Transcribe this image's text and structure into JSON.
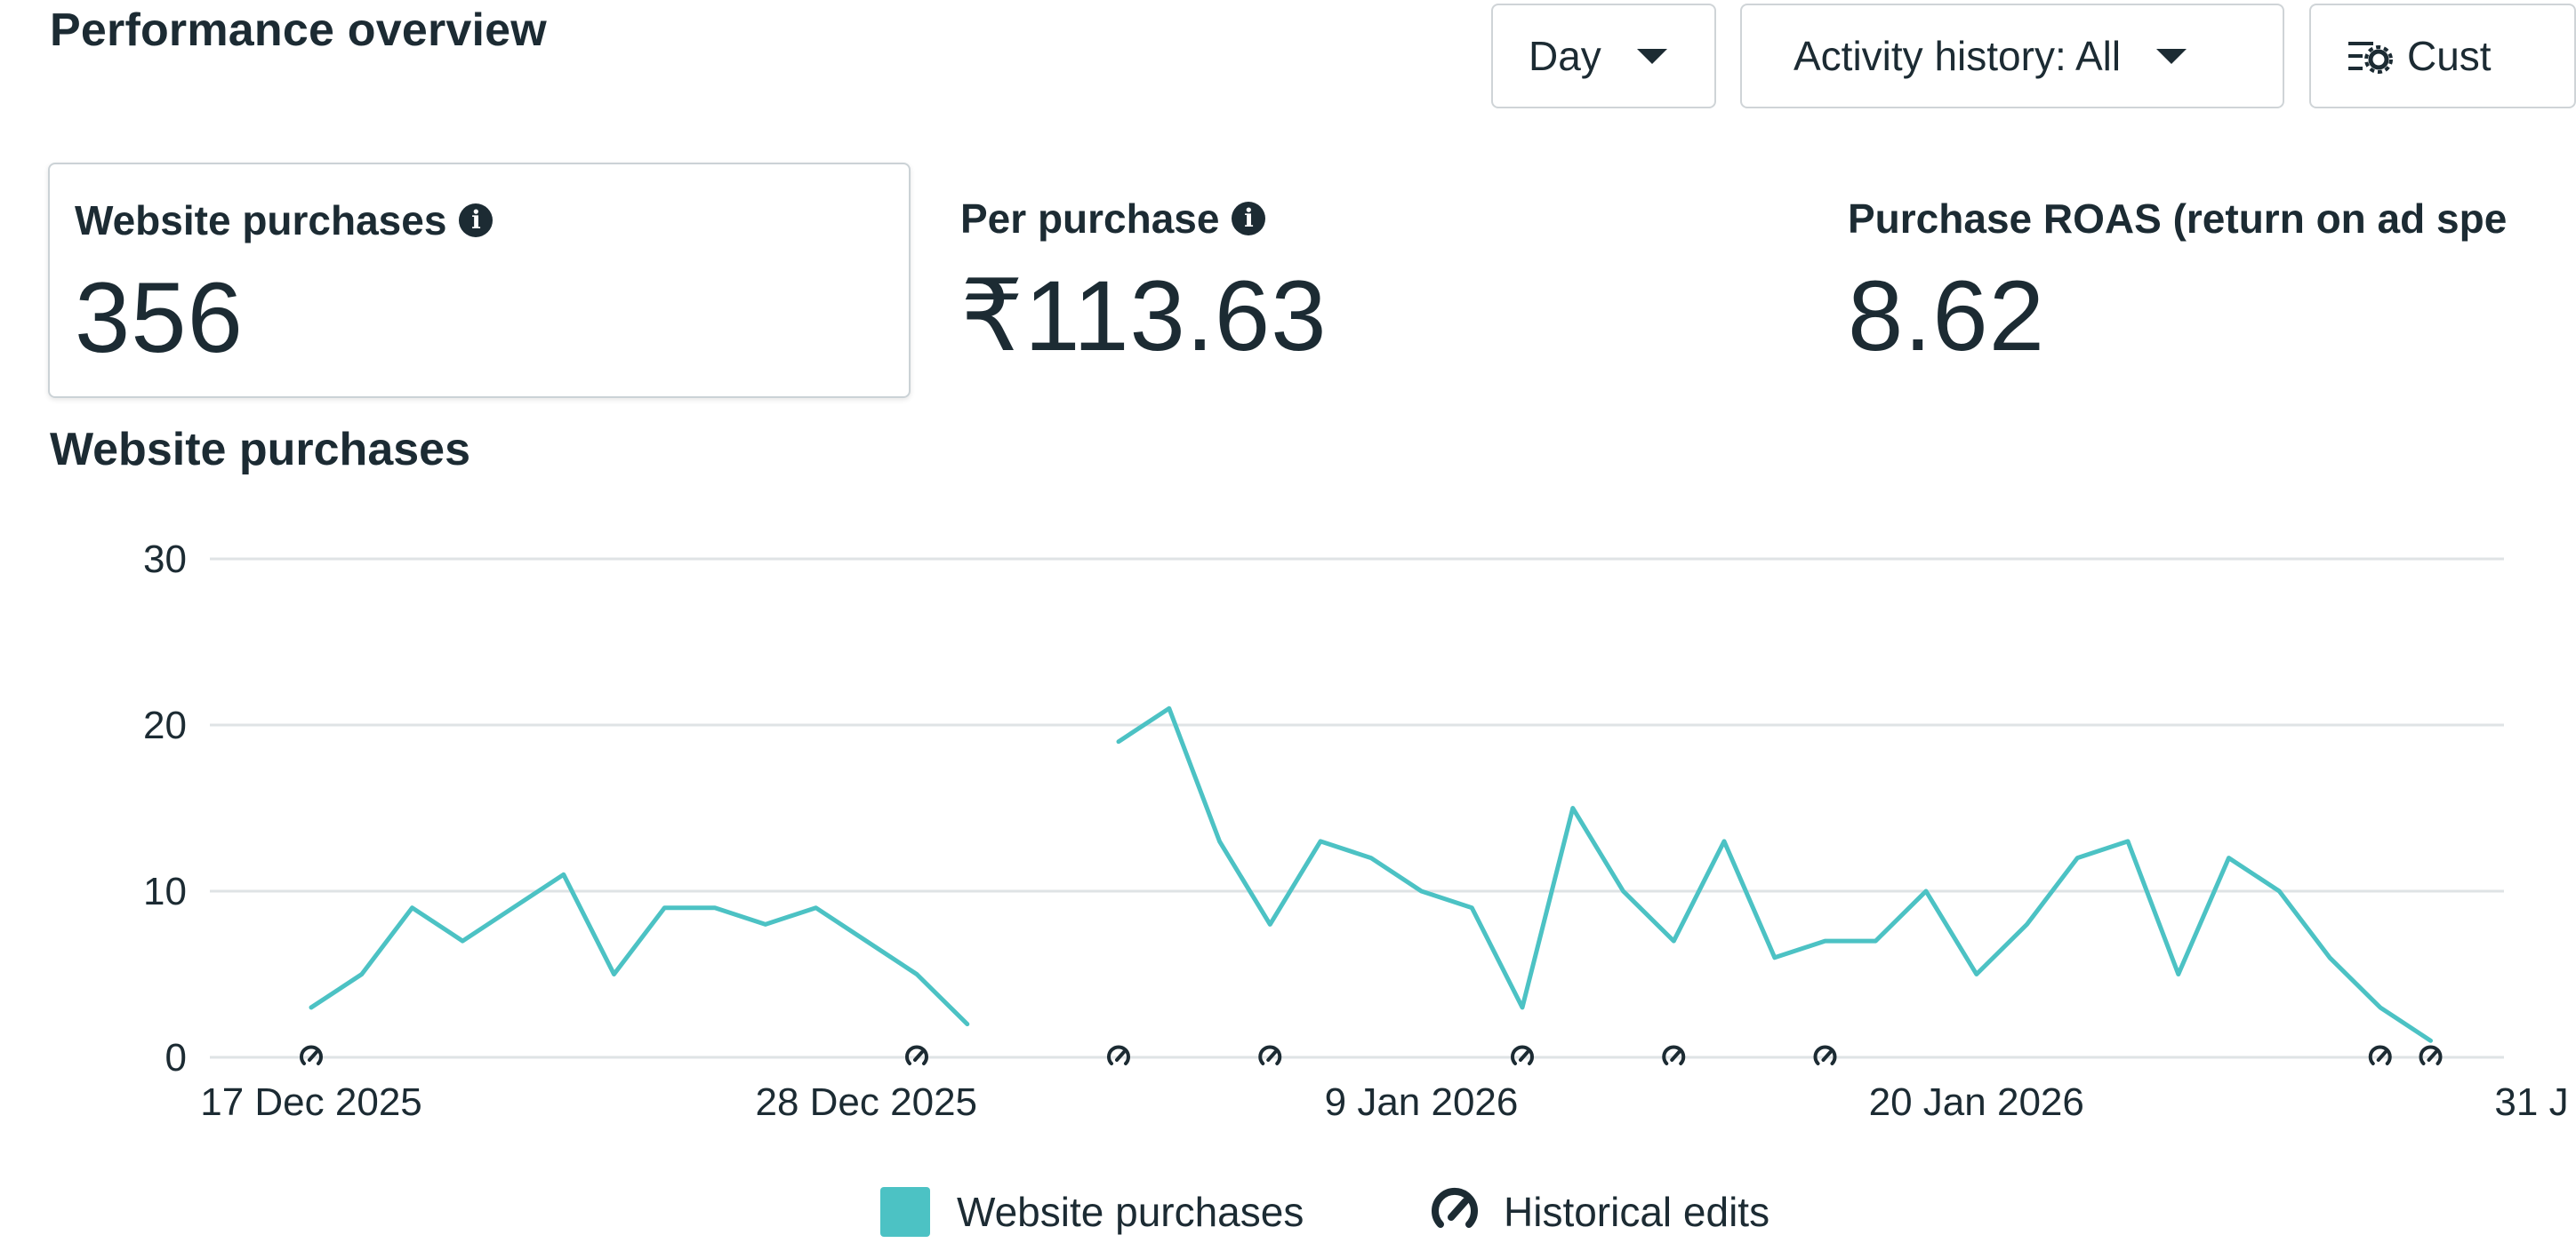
{
  "header": {
    "title": "Performance overview"
  },
  "controls": {
    "day": "Day",
    "activity": "Activity history: All",
    "custom": "Cust"
  },
  "metrics": [
    {
      "label": "Website purchases",
      "value": "356"
    },
    {
      "label": "Per purchase",
      "value": "₹113.63"
    },
    {
      "label": "Purchase ROAS (return on ad spe",
      "value": "8.62"
    }
  ],
  "colors": {
    "series": "#4cc2c4",
    "grid": "#dfe3e5",
    "text": "#1c2b33"
  },
  "chart_data": {
    "type": "line",
    "title": "Website purchases",
    "ylim": [
      0,
      30
    ],
    "yticks": [
      0,
      10,
      20,
      30
    ],
    "xticks": [
      "17 Dec 2025",
      "28 Dec 2025",
      "9 Jan 2026",
      "20 Jan 2026",
      "31 J"
    ],
    "grid": true,
    "legend": "bottom",
    "series": [
      {
        "name": "Website purchases",
        "x": [
          "17 Dec 2025",
          "18 Dec 2025",
          "19 Dec 2025",
          "20 Dec 2025",
          "21 Dec 2025",
          "22 Dec 2025",
          "23 Dec 2025",
          "24 Dec 2025",
          "25 Dec 2025",
          "26 Dec 2025",
          "27 Dec 2025",
          "28 Dec 2025",
          "29 Dec 2025",
          "30 Dec 2025",
          "31 Dec 2025",
          "1 Jan 2026",
          "2 Jan 2026",
          "3 Jan 2026",
          "4 Jan 2026",
          "5 Jan 2026",
          "6 Jan 2026",
          "7 Jan 2026",
          "8 Jan 2026",
          "9 Jan 2026",
          "10 Jan 2026",
          "11 Jan 2026",
          "12 Jan 2026",
          "13 Jan 2026",
          "14 Jan 2026",
          "15 Jan 2026",
          "16 Jan 2026",
          "17 Jan 2026",
          "18 Jan 2026",
          "19 Jan 2026",
          "20 Jan 2026",
          "21 Jan 2026",
          "22 Jan 2026",
          "23 Jan 2026",
          "24 Jan 2026",
          "25 Jan 2026",
          "26 Jan 2026",
          "27 Jan 2026",
          "28 Jan 2026",
          "29 Jan 2026",
          "30 Jan 2026"
        ],
        "values": [
          3,
          5,
          9,
          7,
          9,
          11,
          5,
          9,
          9,
          8,
          9,
          7,
          5,
          2,
          null,
          null,
          19,
          21,
          13,
          8,
          13,
          12,
          10,
          9,
          3,
          15,
          10,
          7,
          13,
          6,
          7,
          7,
          10,
          5,
          8,
          12,
          13,
          5,
          12,
          10,
          6,
          3,
          1,
          null,
          null
        ]
      }
    ],
    "historical_edits": [
      "17 Dec 2025",
      "29 Dec 2025",
      "2 Jan 2026",
      "5 Jan 2026",
      "10 Jan 2026",
      "13 Jan 2026",
      "16 Jan 2026",
      "27 Jan 2026",
      "28 Jan 2026"
    ],
    "legend_entries": [
      "Website purchases",
      "Historical edits"
    ]
  }
}
